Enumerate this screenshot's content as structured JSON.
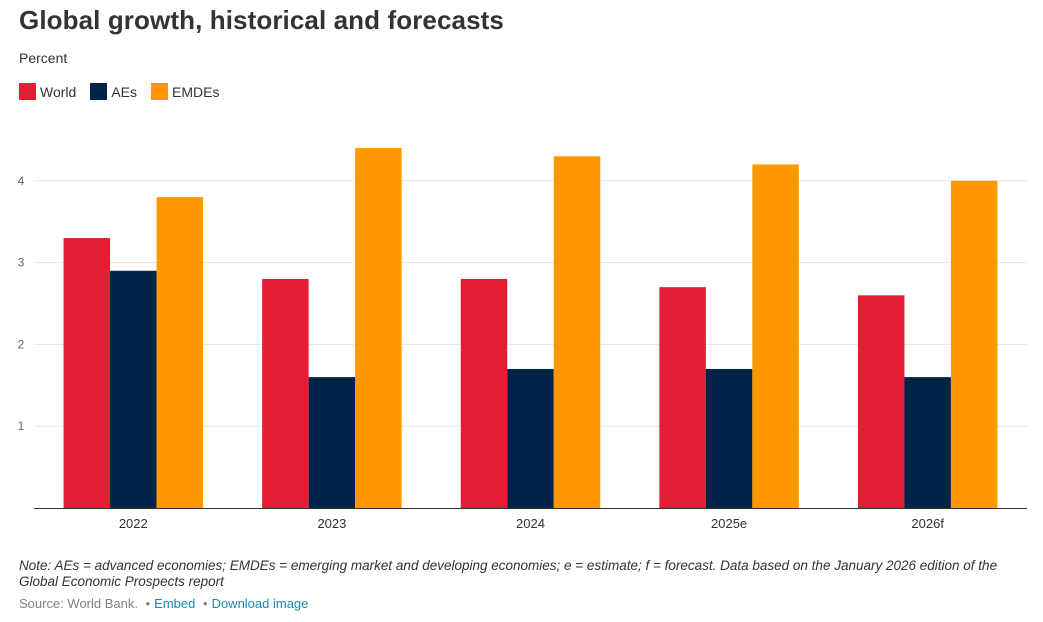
{
  "header": {
    "title": "Global growth, historical and forecasts",
    "subtitle": "Percent"
  },
  "chart_data": {
    "type": "bar",
    "categories": [
      "2022",
      "2023",
      "2024",
      "2025e",
      "2026f"
    ],
    "series": [
      {
        "name": "World",
        "color": "#e31e33",
        "values": [
          3.3,
          2.8,
          2.8,
          2.7,
          2.6
        ]
      },
      {
        "name": "AEs",
        "color": "#002448",
        "values": [
          2.9,
          1.6,
          1.7,
          1.7,
          1.6
        ]
      },
      {
        "name": "EMDEs",
        "color": "#ff9800",
        "values": [
          3.8,
          4.4,
          4.3,
          4.2,
          4.0
        ]
      }
    ],
    "yticks": [
      "1",
      "2",
      "3",
      "4"
    ],
    "ylim": [
      0,
      4.5
    ],
    "grid": true,
    "legend_position": "top-left"
  },
  "footer": {
    "note": "Note: AEs = advanced economies; EMDEs = emerging market and developing economies; e = estimate; f = forecast. Data based on the January 2026 edition of the Global Economic Prospects report",
    "source": "Source: World Bank.",
    "embed_label": "Embed",
    "download_label": "Download image",
    "separator": "•"
  }
}
